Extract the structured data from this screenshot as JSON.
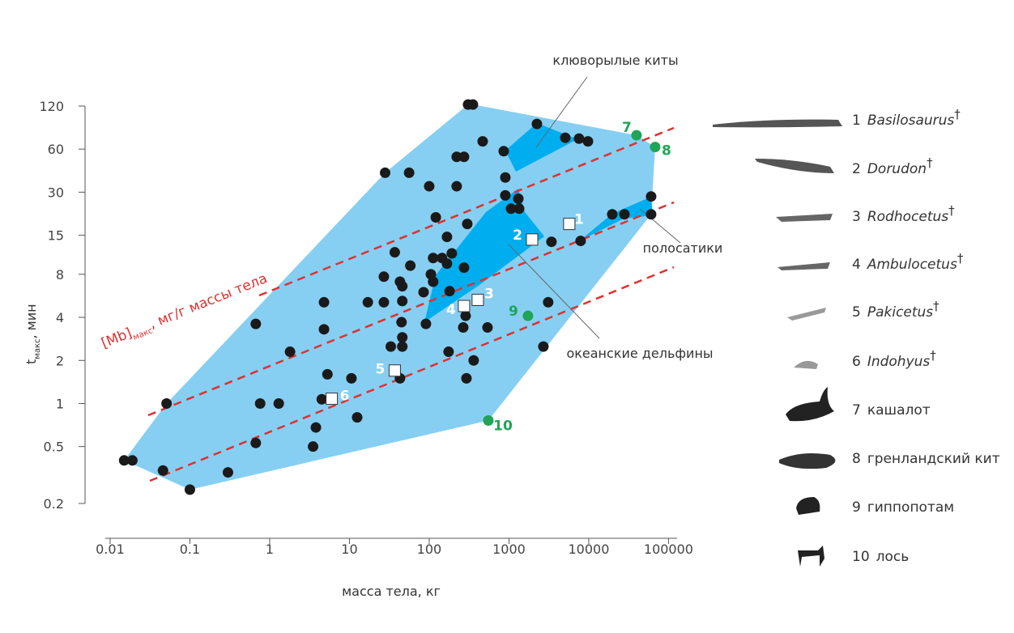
{
  "chart_data": {
    "type": "scatter",
    "xlabel": "масса тела, кг",
    "ylabel": {
      "main": "t",
      "sub": "макс",
      "rest": ", мин"
    },
    "line_label": {
      "main": "[Mb]",
      "sub": "макс",
      "rest": ", мг/г массы тела"
    },
    "annotations": [
      "клюворылые киты",
      "полосатики",
      "океанские дельфины"
    ],
    "xscale": "log",
    "yscale": "log",
    "xlim": [
      0.0087,
      128000
    ],
    "ylim": [
      0.2,
      120
    ],
    "xticks": [
      0.01,
      0.1,
      1,
      10,
      100,
      1000,
      10000,
      100000
    ],
    "yticks": [
      0.2,
      0.5,
      1,
      2,
      4,
      8,
      15,
      30,
      60,
      120
    ],
    "hull_color": "#86cff2",
    "series": [
      {
        "color": "#1a1a1a",
        "marker": "circle",
        "x": [
          0.015,
          0.019,
          0.051,
          0.046,
          0.1,
          0.3,
          0.67,
          0.67,
          0.76,
          1.3,
          1.8,
          4.8,
          4.8,
          4.5,
          5.3,
          3.8,
          3.5,
          10.6,
          12.5,
          17,
          28,
          27,
          27,
          33,
          43,
          46,
          46,
          45,
          46,
          46,
          43,
          56,
          58,
          37,
          85,
          91,
          100,
          105,
          112,
          112,
          121,
          145,
          167,
          167,
          180,
          175,
          192,
          221,
          221,
          273,
          267,
          273,
          286,
          300,
          293,
          361,
          468,
          538,
          307,
          353,
          859,
          900,
          900,
          1060,
          1340,
          1310,
          2240,
          3410,
          2700,
          3100,
          5080,
          7550,
          9770,
          7910,
          19700,
          28000,
          60500,
          60500
        ],
        "y": [
          0.4,
          0.4,
          1.0,
          0.34,
          0.25,
          0.33,
          3.6,
          0.53,
          1.0,
          1.0,
          2.3,
          5.1,
          3.3,
          1.07,
          1.6,
          0.68,
          0.5,
          1.5,
          0.8,
          5.1,
          41,
          5.1,
          7.7,
          2.5,
          7.1,
          6.6,
          5.2,
          3.7,
          2.9,
          2.5,
          1.5,
          41,
          9.2,
          11.4,
          6.0,
          3.6,
          33,
          8.0,
          10.4,
          7.1,
          20,
          10.4,
          14.6,
          9.5,
          6.1,
          2.3,
          11.2,
          33,
          53,
          53,
          3.4,
          8.9,
          4.1,
          18,
          1.5,
          2.0,
          68,
          3.4,
          123,
          123,
          58,
          38,
          28.5,
          23,
          23,
          27,
          90,
          13.5,
          2.5,
          5.1,
          72,
          71,
          68,
          13.7,
          21,
          21,
          28,
          21
        ]
      },
      {
        "color": "#ffffff",
        "marker": "square",
        "label_color": "#ffffff",
        "x": [
          5700,
          1950,
          406,
          273,
          37,
          6.0
        ],
        "y": [
          18,
          14,
          5.3,
          4.8,
          1.7,
          1.08
        ]
      },
      {
        "color": "#1fa555",
        "marker": "circle",
        "label_color": "#1fa555",
        "x": [
          39700,
          68000,
          1730,
          551
        ],
        "y": [
          75,
          62,
          4.1,
          0.76
        ]
      }
    ],
    "legend": [
      {
        "number": "1",
        "name": "Basilosaurus",
        "extinct": "†"
      },
      {
        "number": "2",
        "name": "Dorudon",
        "extinct": "†"
      },
      {
        "number": "3",
        "name": "Rodhocetus",
        "extinct": "†"
      },
      {
        "number": "4",
        "name": "Ambulocetus",
        "extinct": "†"
      },
      {
        "number": "5",
        "name": "Pakicetus",
        "extinct": "†"
      },
      {
        "number": "6",
        "name": "Indohyus",
        "extinct": "†"
      },
      {
        "number": "7",
        "name": "кашалот"
      },
      {
        "number": "8",
        "name": "гренландский кит"
      },
      {
        "number": "9",
        "name": "гиппопотам"
      },
      {
        "number": "10",
        "name": "лось"
      }
    ]
  }
}
